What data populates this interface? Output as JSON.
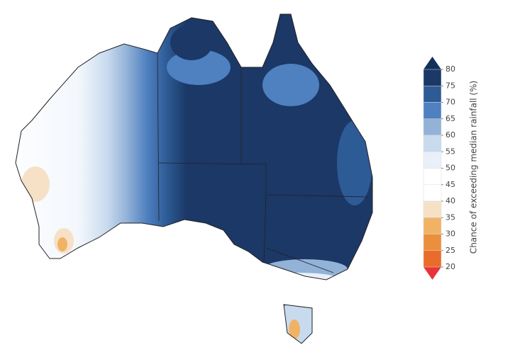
{
  "map": {
    "legend": {
      "title": "Chance of exceeding median rainfall (%)",
      "ticks": [
        80,
        75,
        70,
        65,
        60,
        55,
        50,
        45,
        40,
        35,
        30,
        25,
        20
      ],
      "colors": [
        "#1b3866",
        "#2d5b95",
        "#4f80c0",
        "#92b2d7",
        "#c8daee",
        "#e9f0f9",
        "#ffffff",
        "#ffffff",
        "#f7e1c6",
        "#f0b366",
        "#ec8f3c",
        "#ea6c2b",
        "#e65328",
        "#e8333a"
      ],
      "over_color": "#142f5a",
      "under_color": "#e8333a"
    }
  }
}
